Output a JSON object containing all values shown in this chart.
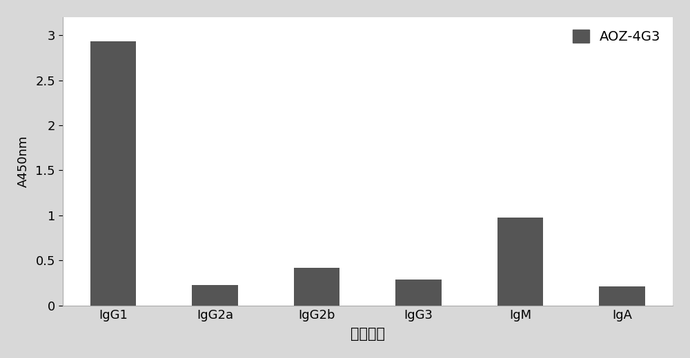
{
  "categories": [
    "IgG1",
    "IgG2a",
    "IgG2b",
    "IgG3",
    "IgM",
    "IgA"
  ],
  "values": [
    2.93,
    0.23,
    0.42,
    0.29,
    0.98,
    0.21
  ],
  "bar_color": "#555555",
  "legend_label": "AOZ-4G3",
  "xlabel": "抗体亚型",
  "ylabel": "A450nm",
  "ylim": [
    0,
    3.2
  ],
  "yticks": [
    0,
    0.5,
    1,
    1.5,
    2,
    2.5,
    3
  ],
  "background_color": "#d8d8d8",
  "plot_background": "#ffffff",
  "xlabel_fontsize": 15,
  "ylabel_fontsize": 13,
  "tick_fontsize": 13,
  "legend_fontsize": 14,
  "bar_width": 0.45
}
